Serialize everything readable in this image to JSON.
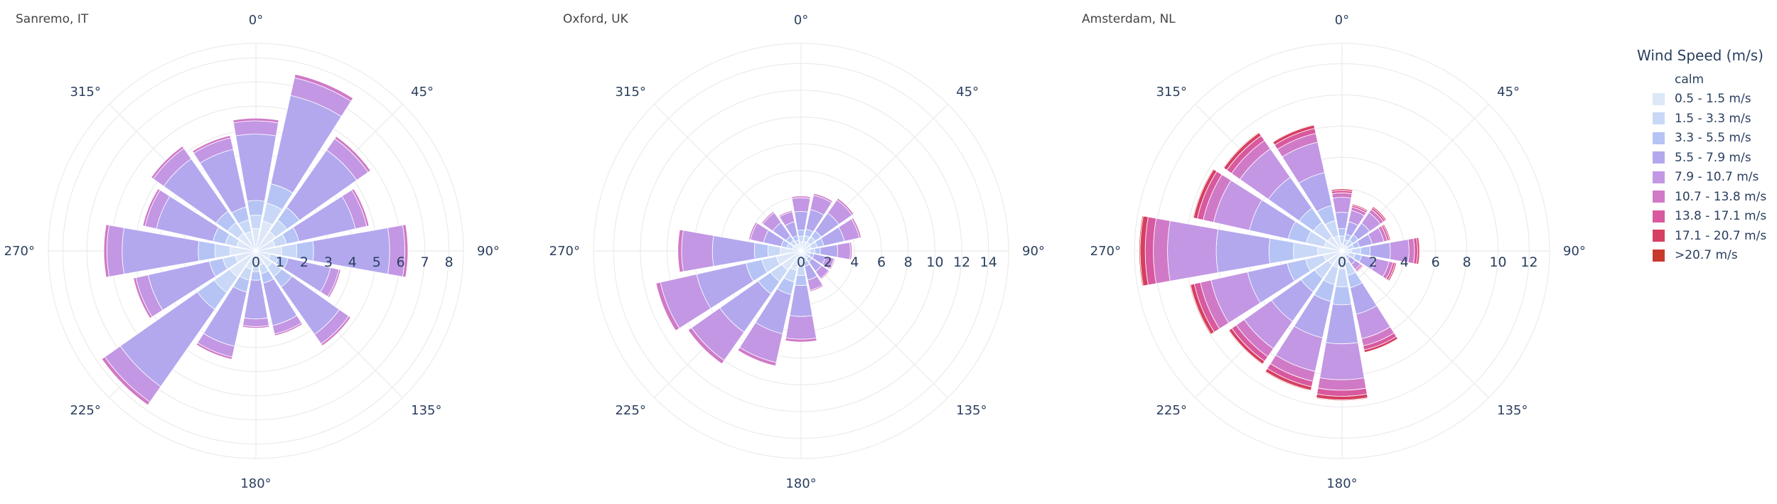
{
  "chart_data": {
    "type": "barpolar",
    "legend": {
      "title": "Wind Speed (m/s)",
      "placement": "right",
      "items": [
        {
          "name": "calm",
          "color": "#ffffff"
        },
        {
          "name": "0.5 - 1.5 m/s",
          "color": "#dde7f8"
        },
        {
          "name": "1.5 - 3.3 m/s",
          "color": "#c9d8f6"
        },
        {
          "name": "3.3 - 5.5 m/s",
          "color": "#b5c4f5"
        },
        {
          "name": "5.5 - 7.9 m/s",
          "color": "#b3a8ee"
        },
        {
          "name": "7.9 - 10.7 m/s",
          "color": "#c397e4"
        },
        {
          "name": "10.7 - 13.8 m/s",
          "color": "#d07ac7"
        },
        {
          "name": "13.8 - 17.1 m/s",
          "color": "#d8599f"
        },
        {
          "name": "17.1 - 20.7 m/s",
          "color": "#d63f62"
        },
        {
          "name": ">20.7 m/s",
          "color": "#c8392d"
        }
      ]
    },
    "angle_ticks": [
      "0°",
      "45°",
      "90°",
      "135°",
      "180°",
      "225°",
      "270°",
      "315°"
    ],
    "directions": [
      0,
      22.5,
      45,
      67.5,
      90,
      112.5,
      135,
      157.5,
      180,
      202.5,
      225,
      247.5,
      270,
      292.5,
      315,
      337.5
    ],
    "subplots": [
      {
        "title": "Sanremo, IT",
        "radial_range": [
          0,
          8.6
        ],
        "radial_ticks": [
          0,
          1,
          2,
          3,
          4,
          5,
          6,
          7,
          8
        ],
        "totals": [
          5.5,
          7.5,
          5.8,
          4.8,
          6.3,
          3.6,
          4.8,
          3.6,
          3.2,
          4.6,
          7.8,
          5.2,
          6.3,
          4.8,
          5.3,
          4.9
        ],
        "bin_fractions": [
          0.17,
          0.27,
          0.38,
          0.88,
          0.98,
          1.0,
          1.0,
          1.0,
          1.0
        ]
      },
      {
        "title": "Oxford, UK",
        "radial_range": [
          0,
          15.5
        ],
        "radial_ticks": [
          0,
          2,
          4,
          6,
          8,
          10,
          12,
          14
        ],
        "totals": [
          4.1,
          4.4,
          4.8,
          4.6,
          3.8,
          2.6,
          2.6,
          3.1,
          6.8,
          8.8,
          10.3,
          11.1,
          9.2,
          4.0,
          3.6,
          3.1
        ],
        "bin_fractions": [
          0.17,
          0.27,
          0.38,
          0.72,
          0.97,
          1.0,
          1.0,
          1.0,
          1.0
        ]
      },
      {
        "title": "Amsterdam, NL",
        "radial_range": [
          0,
          13.3
        ],
        "radial_ticks": [
          0,
          2,
          4,
          6,
          8,
          10,
          12
        ],
        "totals": [
          4.0,
          3.1,
          3.5,
          3.2,
          5.0,
          3.6,
          1.7,
          6.7,
          9.6,
          9.2,
          8.9,
          10.0,
          13.0,
          9.8,
          9.3,
          8.3
        ],
        "bin_fractions": [
          0.12,
          0.24,
          0.36,
          0.62,
          0.86,
          0.93,
          0.97,
          0.995,
          1.0
        ]
      }
    ]
  }
}
